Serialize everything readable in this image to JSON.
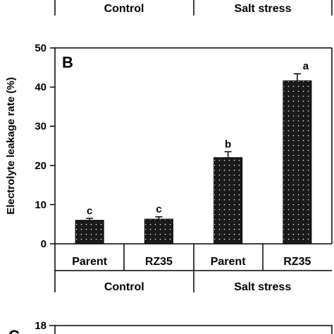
{
  "top_fragment": {
    "group_labels": [
      "Control",
      "Salt stress"
    ]
  },
  "chart_data": {
    "type": "bar",
    "panel_label": "B",
    "ylabel": "Electrolyte leakage rate (%)",
    "ylim": [
      0,
      50
    ],
    "yticks": [
      0,
      10,
      20,
      30,
      40,
      50
    ],
    "categories": [
      "Parent",
      "RZ35",
      "Parent",
      "RZ35"
    ],
    "groups": [
      {
        "label": "Control",
        "members": [
          0,
          1
        ]
      },
      {
        "label": "Salt stress",
        "members": [
          2,
          3
        ]
      }
    ],
    "values": [
      6.0,
      6.3,
      22.0,
      41.6
    ],
    "errors": [
      0.5,
      0.6,
      1.5,
      1.8
    ],
    "significance": [
      "c",
      "c",
      "b",
      "a"
    ],
    "bar_fill": "#1a1a1a",
    "bar_pattern": "white dots",
    "grid": false
  },
  "bottom_fragment": {
    "panel_label": "C",
    "ytick_visible": "18"
  }
}
